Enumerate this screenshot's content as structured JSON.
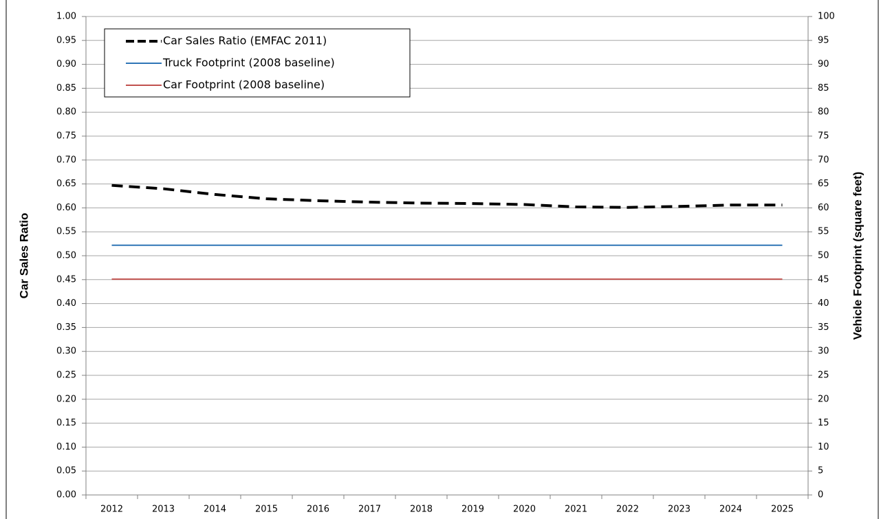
{
  "chart_data": {
    "type": "line",
    "y_label": "Car Sales Ratio",
    "y2_label": "Vehicle Footprint (square feet)",
    "categories": [
      "2012",
      "2013",
      "2014",
      "2015",
      "2016",
      "2017",
      "2018",
      "2019",
      "2020",
      "2021",
      "2022",
      "2023",
      "2024",
      "2025"
    ],
    "series": [
      {
        "name": "Car Sales Ratio (EMFAC 2011)",
        "color": "#000000",
        "linestyle": "dashed",
        "axis": "y",
        "values": [
          0.647,
          0.64,
          0.628,
          0.619,
          0.615,
          0.612,
          0.61,
          0.609,
          0.607,
          0.602,
          0.601,
          0.603,
          0.606,
          0.606
        ]
      },
      {
        "name": "Truck Footprint (2008 baseline)",
        "color": "#2e75b6",
        "linestyle": "solid",
        "axis": "y2",
        "values": [
          52.2,
          52.2,
          52.2,
          52.2,
          52.2,
          52.2,
          52.2,
          52.2,
          52.2,
          52.2,
          52.2,
          52.2,
          52.2,
          52.2
        ]
      },
      {
        "name": "Car Footprint (2008 baseline)",
        "color": "#c0504d",
        "linestyle": "solid",
        "axis": "y2",
        "values": [
          45.1,
          45.1,
          45.1,
          45.1,
          45.1,
          45.1,
          45.1,
          45.1,
          45.1,
          45.1,
          45.1,
          45.1,
          45.1,
          45.1
        ]
      }
    ],
    "ylim": [
      0,
      1
    ],
    "yticks": [
      {
        "value": 0,
        "label": "0.00"
      },
      {
        "value": 0.05,
        "label": "0.05"
      },
      {
        "value": 0.1,
        "label": "0.10"
      },
      {
        "value": 0.15,
        "label": "0.15"
      },
      {
        "value": 0.2,
        "label": "0.20"
      },
      {
        "value": 0.25,
        "label": "0.25"
      },
      {
        "value": 0.3,
        "label": "0.30"
      },
      {
        "value": 0.35,
        "label": "0.35"
      },
      {
        "value": 0.4,
        "label": "0.40"
      },
      {
        "value": 0.45,
        "label": "0.45"
      },
      {
        "value": 0.5,
        "label": "0.50"
      },
      {
        "value": 0.55,
        "label": "0.55"
      },
      {
        "value": 0.6,
        "label": "0.60"
      },
      {
        "value": 0.65,
        "label": "0.65"
      },
      {
        "value": 0.7,
        "label": "0.70"
      },
      {
        "value": 0.75,
        "label": "0.75"
      },
      {
        "value": 0.8,
        "label": "0.80"
      },
      {
        "value": 0.85,
        "label": "0.85"
      },
      {
        "value": 0.9,
        "label": "0.90"
      },
      {
        "value": 0.95,
        "label": "0.95"
      },
      {
        "value": 1,
        "label": "1.00"
      }
    ],
    "y2lim": [
      0,
      100
    ],
    "y2ticks": [
      0,
      5,
      10,
      15,
      20,
      25,
      30,
      35,
      40,
      45,
      50,
      55,
      60,
      65,
      70,
      75,
      80,
      85,
      90,
      95,
      100
    ],
    "grid": true,
    "legend": "upper left"
  }
}
